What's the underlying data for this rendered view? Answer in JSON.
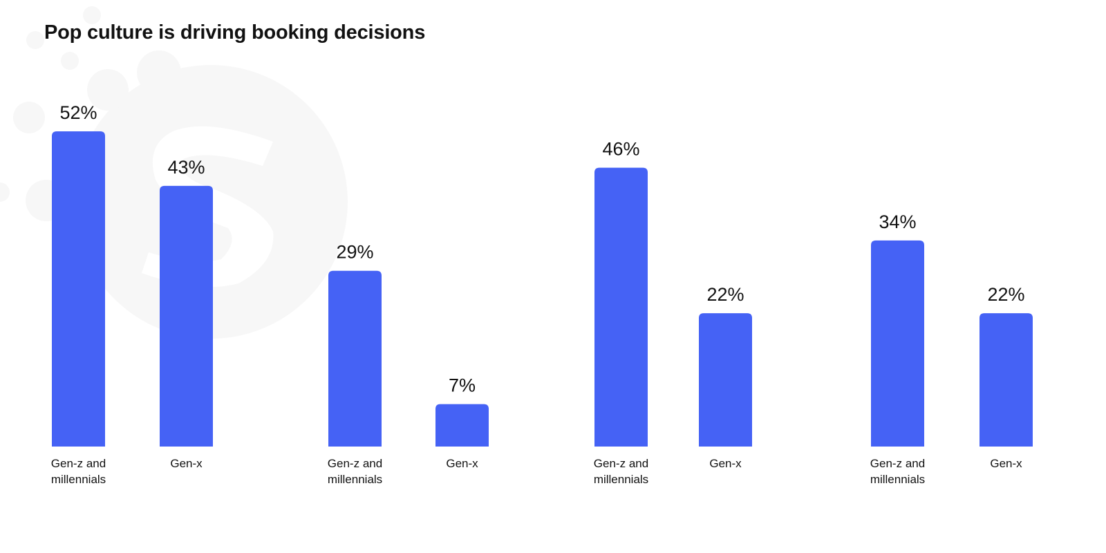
{
  "title": "Pop culture is driving booking decisions",
  "chart_data": {
    "type": "bar",
    "title": "Pop culture is driving booking decisions",
    "bar_color": "#4562F5",
    "groups": 4,
    "categories": [
      "Gen-z and millennials",
      "Gen-x",
      "Gen-z and millennials",
      "Gen-x",
      "Gen-z and millennials",
      "Gen-x",
      "Gen-z and millennials",
      "Gen-x"
    ],
    "values": [
      52,
      43,
      29,
      7,
      46,
      22,
      34,
      22
    ],
    "value_labels": [
      "52%",
      "43%",
      "29%",
      "7%",
      "46%",
      "22%",
      "34%",
      "22%"
    ],
    "ylim": [
      0,
      52
    ],
    "grid": false,
    "xlabel": "",
    "ylabel": ""
  }
}
